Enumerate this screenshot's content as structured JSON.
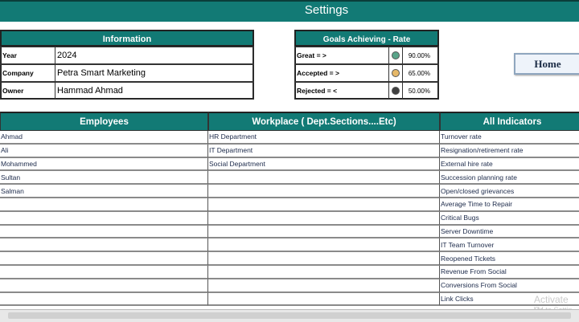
{
  "header": {
    "title": "Settings"
  },
  "information": {
    "title": "Information",
    "rows": [
      [
        "Year",
        "2024"
      ],
      [
        "Company",
        "Petra Smart Marketing"
      ],
      [
        "Owner",
        "Hammad Ahmad"
      ]
    ]
  },
  "goals": {
    "title": "Goals Achieving - Rate",
    "rows": [
      {
        "label": "Great = >",
        "value": "90.00%",
        "color": "#5aa58a"
      },
      {
        "label": "Accepted = >",
        "value": "65.00%",
        "color": "#e6b868"
      },
      {
        "label": "Rejected = <",
        "value": "50.00%",
        "color": "#404040"
      }
    ]
  },
  "home_button": "Home",
  "table": {
    "columns": [
      "Employees",
      "Workplace ( Dept.Sections....Etc)",
      "All Indicators"
    ],
    "employees": [
      "Ahmad",
      "Ali",
      "Mohammed",
      "Sultan",
      "Salman"
    ],
    "workplaces": [
      "HR Department",
      "IT Department",
      "Social Department"
    ],
    "indicators": [
      "Turnover rate",
      "Resignation/retirement rate",
      "External hire rate",
      "Succession planning rate",
      "Open/closed grievances",
      "Average Time to Repair",
      "Critical Bugs",
      "Server Downtime",
      "IT Team Turnover",
      "Reopened Tickets",
      "Revenue From Social",
      "Conversions From Social",
      "Link Clicks"
    ]
  },
  "watermark": {
    "line1": "Activate W",
    "line2": "Go to Settin"
  }
}
